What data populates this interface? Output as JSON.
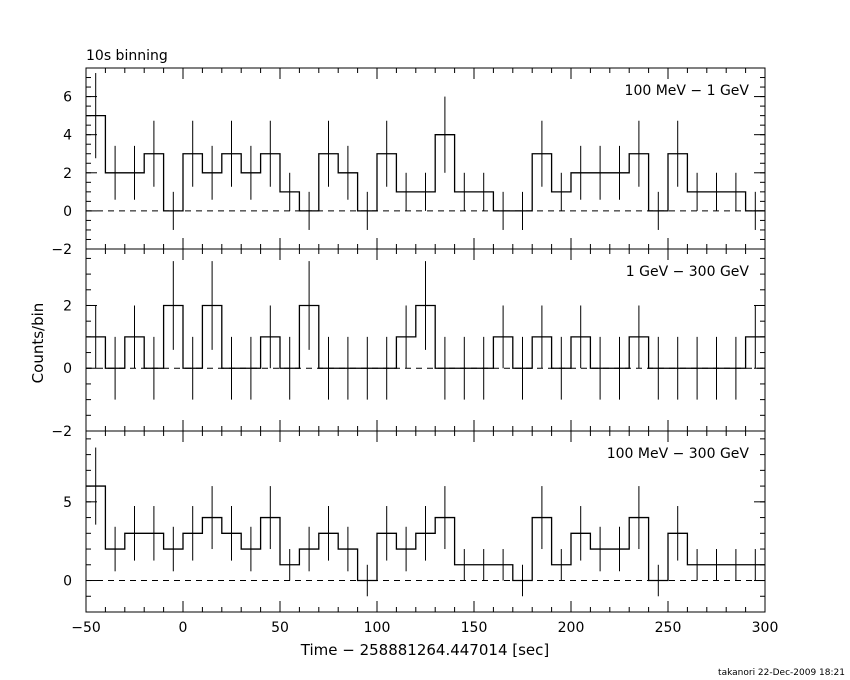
{
  "header": {
    "binning": "10s binning"
  },
  "footer": {
    "credit": "takanori 22-Dec-2009 18:21"
  },
  "axes": {
    "xlabel": "Time − 258881264.447014 [sec]",
    "ylabel": "Counts/bin",
    "xlim": [
      -50,
      300
    ],
    "xticks": [
      -50,
      0,
      50,
      100,
      150,
      200,
      250,
      300
    ],
    "xtick_labels": [
      "−50",
      "0",
      "50",
      "100",
      "150",
      "200",
      "250",
      "300"
    ]
  },
  "chart_data": [
    {
      "type": "step",
      "panel": "top",
      "title": "100 MeV − 1 GeV",
      "bin_width": 10,
      "x": [
        -45,
        -35,
        -25,
        -15,
        -5,
        5,
        15,
        25,
        35,
        45,
        55,
        65,
        75,
        85,
        95,
        105,
        115,
        125,
        135,
        145,
        155,
        165,
        175,
        185,
        195,
        205,
        215,
        225,
        235,
        245,
        255,
        265,
        275,
        285,
        295
      ],
      "values": [
        5,
        2,
        2,
        3,
        0,
        3,
        2,
        3,
        2,
        3,
        1,
        0,
        3,
        2,
        0,
        3,
        1,
        1,
        4,
        1,
        1,
        0,
        0,
        3,
        1,
        2,
        2,
        2,
        3,
        0,
        3,
        1,
        1,
        1,
        0
      ],
      "ylim": [
        -2,
        7.5
      ],
      "yticks": [
        -2,
        0,
        2,
        4,
        6
      ],
      "ytick_labels": [
        "−2",
        "0",
        "2",
        "4",
        "6"
      ],
      "minor_step": 0.5
    },
    {
      "type": "step",
      "panel": "middle",
      "title": "1 GeV − 300 GeV",
      "bin_width": 10,
      "x": [
        -45,
        -35,
        -25,
        -15,
        -5,
        5,
        15,
        25,
        35,
        45,
        55,
        65,
        75,
        85,
        95,
        105,
        115,
        125,
        135,
        145,
        155,
        165,
        175,
        185,
        195,
        205,
        215,
        225,
        235,
        245,
        255,
        265,
        275,
        285,
        295
      ],
      "values": [
        1,
        0,
        1,
        0,
        2,
        0,
        2,
        0,
        0,
        1,
        0,
        2,
        0,
        0,
        0,
        0,
        1,
        2,
        0,
        0,
        0,
        1,
        0,
        1,
        0,
        1,
        0,
        0,
        1,
        0,
        0,
        0,
        0,
        0,
        1
      ],
      "ylim": [
        -2,
        3.8
      ],
      "yticks": [
        -2,
        0,
        2
      ],
      "ytick_labels": [
        "−2",
        "0",
        "2"
      ],
      "minor_step": 0.5
    },
    {
      "type": "step",
      "panel": "bottom",
      "title": "100 MeV − 300 GeV",
      "bin_width": 10,
      "x": [
        -45,
        -35,
        -25,
        -15,
        -5,
        5,
        15,
        25,
        35,
        45,
        55,
        65,
        75,
        85,
        95,
        105,
        115,
        125,
        135,
        145,
        155,
        165,
        175,
        185,
        195,
        205,
        215,
        225,
        235,
        245,
        255,
        265,
        275,
        285,
        295
      ],
      "values": [
        6,
        2,
        3,
        3,
        2,
        3,
        4,
        3,
        2,
        4,
        1,
        2,
        3,
        2,
        0,
        3,
        2,
        3,
        4,
        1,
        1,
        1,
        0,
        4,
        1,
        3,
        2,
        2,
        4,
        0,
        3,
        1,
        1,
        1,
        1
      ],
      "ylim": [
        -2,
        9.5
      ],
      "yticks": [
        0,
        5
      ],
      "ytick_labels": [
        "0",
        "5"
      ],
      "minor_step": 1
    }
  ]
}
